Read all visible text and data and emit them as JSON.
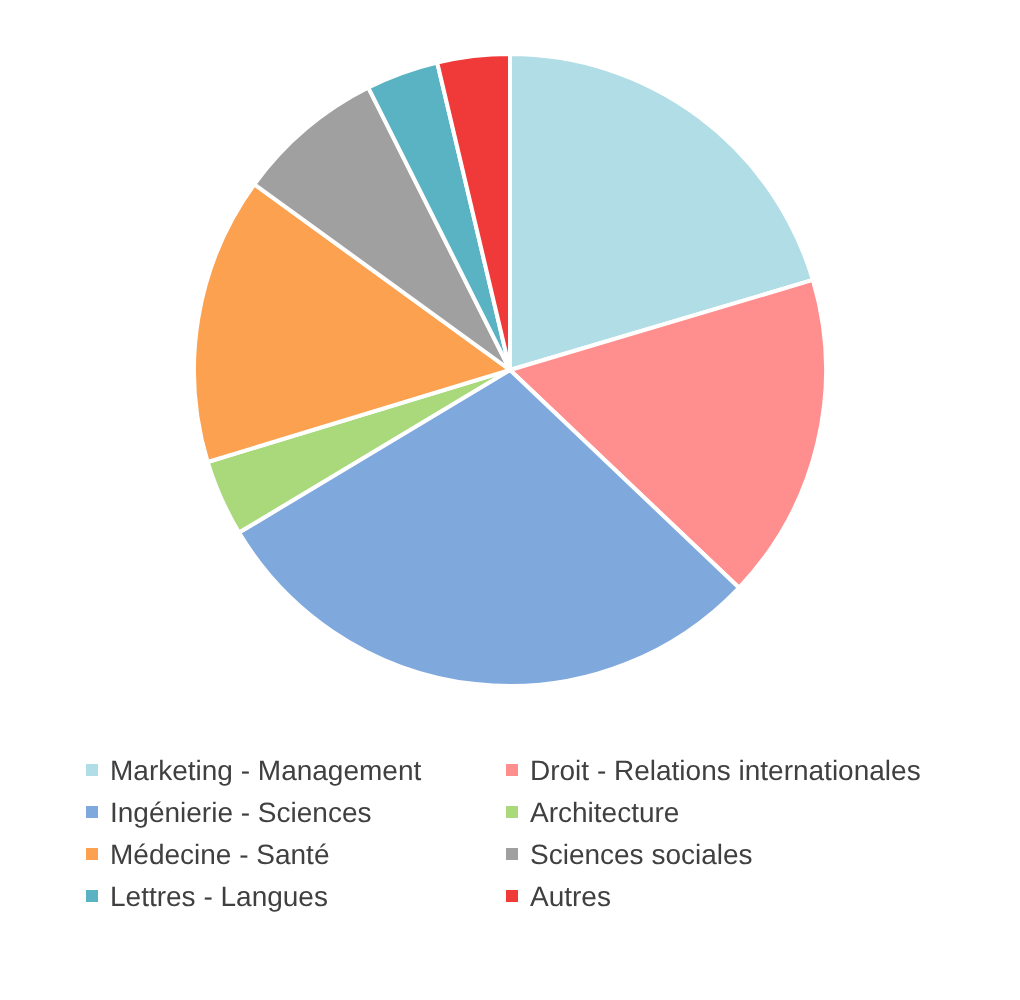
{
  "chart_data": {
    "type": "pie",
    "categories": [
      "Marketing - Management",
      "Droit - Relations internationales",
      "Ingénierie - Sciences",
      "Architecture",
      "Médecine - Santé",
      "Sciences sociales",
      "Lettres - Langues",
      "Autres"
    ],
    "values": [
      20.4,
      16.7,
      29.3,
      3.9,
      14.7,
      7.6,
      3.7,
      3.7
    ],
    "colors": [
      "#b0dde6",
      "#ff8f8f",
      "#7fa8dd",
      "#a9d97a",
      "#fba14f",
      "#a0a0a0",
      "#5ab3c3",
      "#f03a3a"
    ],
    "legend": "bottom"
  }
}
